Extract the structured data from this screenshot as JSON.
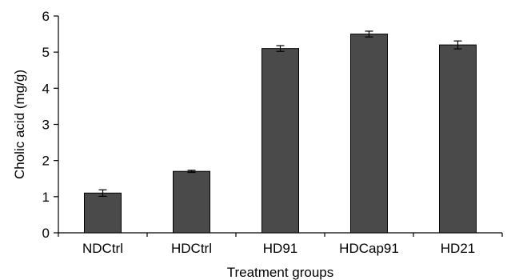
{
  "chart_data": {
    "type": "bar",
    "categories": [
      "NDCtrl",
      "HDCtrl",
      "HD91",
      "HDCap91",
      "HD21"
    ],
    "series": [
      {
        "values": [
          1.1,
          1.7,
          5.1,
          5.5,
          5.2
        ],
        "errors": [
          0.09,
          0.03,
          0.08,
          0.08,
          0.11
        ],
        "color": "#4a4a4a"
      }
    ],
    "title": "",
    "xlabel": "Treatment groups",
    "ylabel": "Cholic acid (mg/g)",
    "ylim": [
      0,
      6
    ],
    "yticks": [
      "0",
      "1",
      "2",
      "3",
      "4",
      "5",
      "6"
    ],
    "grid": false,
    "legend": "none"
  }
}
